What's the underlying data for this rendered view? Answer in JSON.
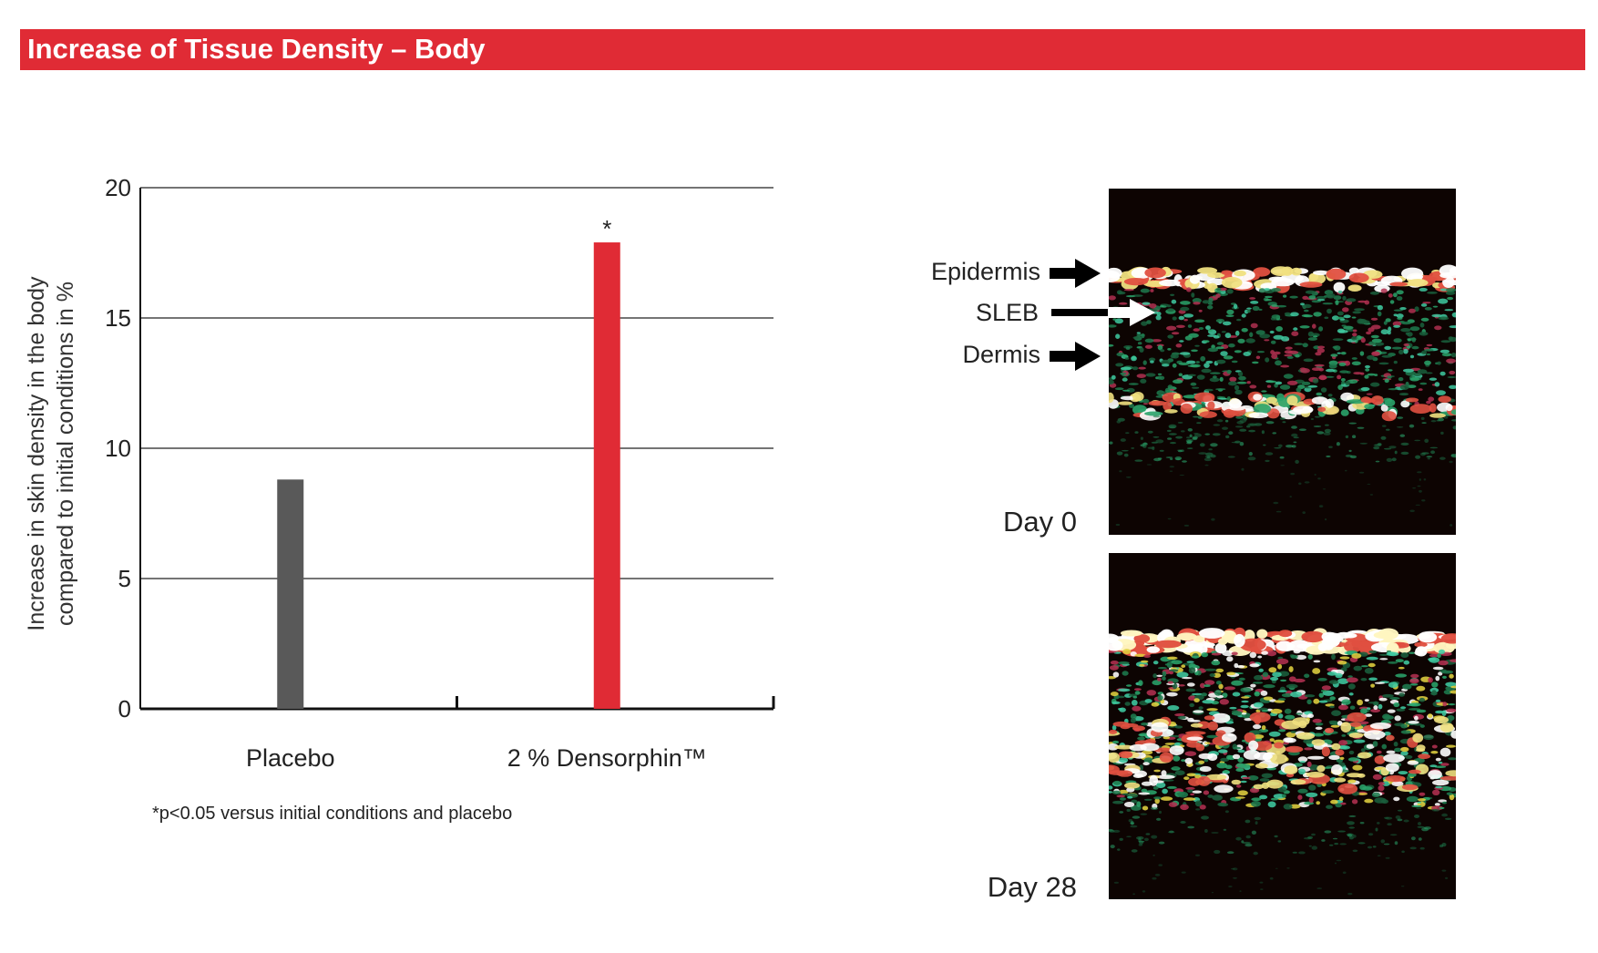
{
  "header": {
    "title": "Increase of Tissue Density – Body"
  },
  "chart_data": {
    "type": "bar",
    "categories": [
      "Placebo",
      "2 % Densorphin™"
    ],
    "values": [
      8.8,
      17.9
    ],
    "colors": [
      "#595959",
      "#e02b35"
    ],
    "significance": [
      "",
      "*"
    ],
    "ylabel_line1": "Increase in skin density in the body",
    "ylabel_line2": "compared to initial conditions in %",
    "ylim": [
      0,
      20
    ],
    "yticks": [
      0,
      5,
      10,
      15,
      20
    ],
    "grid": true
  },
  "footnote": "*p<0.05 versus initial conditions and placebo",
  "images": {
    "day0": {
      "label": "Day 0"
    },
    "day28": {
      "label": "Day 28"
    },
    "layers": [
      "Epidermis",
      "SLEB",
      "Dermis"
    ],
    "arrow_colors": {
      "epidermis": "#000000",
      "sleb": "#ffffff",
      "dermis": "#000000"
    }
  }
}
